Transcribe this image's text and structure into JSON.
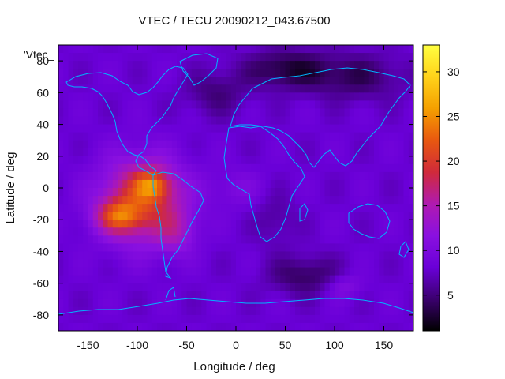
{
  "chart_data": {
    "type": "heatmap",
    "title": "VTEC / TECU 20090212_043.67500",
    "xlabel": "Longitude / deg",
    "ylabel": "Latitude / deg",
    "legend_key": "'Vtec_",
    "xlim": [
      -180,
      180
    ],
    "ylim": [
      -90,
      90
    ],
    "xticks": [
      -150,
      -100,
      -50,
      0,
      50,
      100,
      150
    ],
    "yticks": [
      -80,
      -60,
      -40,
      -20,
      0,
      20,
      40,
      60,
      80
    ],
    "colorbar": {
      "range": [
        1,
        33
      ],
      "ticks": [
        5,
        10,
        15,
        20,
        25,
        30
      ]
    },
    "grid": false,
    "colors": {
      "palette": [
        "#000000",
        "#3b006e",
        "#6a00d8",
        "#8a10e0",
        "#b01ab0",
        "#d02a3a",
        "#e85810",
        "#f5a000",
        "#ffd21a",
        "#ffff40"
      ],
      "coastline": "#00b4ff"
    },
    "field": {
      "description_units": "TECU",
      "background": 8,
      "peak_region_lon": [
        -165,
        -30
      ],
      "peak_region_lat": [
        -45,
        15
      ],
      "max_value": 32
    }
  }
}
